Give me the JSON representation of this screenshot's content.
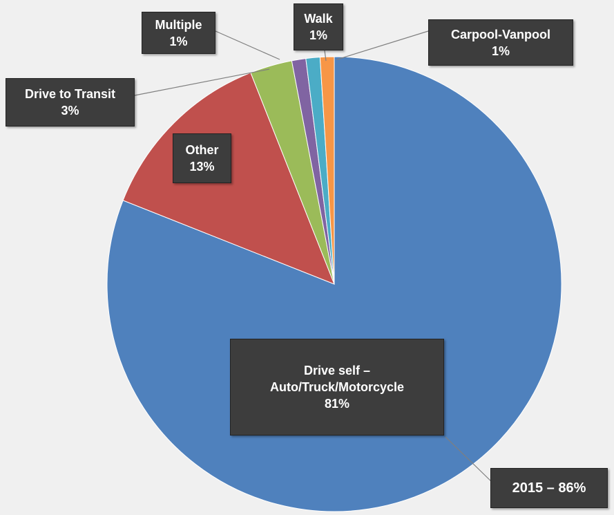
{
  "chart_data": {
    "type": "pie",
    "categories": [
      "Drive self – Auto/Truck/Motorcycle",
      "Other",
      "Drive to Transit",
      "Multiple",
      "Walk",
      "Carpool-Vanpool"
    ],
    "values": [
      81,
      13,
      3,
      1,
      1,
      1
    ],
    "value_labels": [
      "81%",
      "13%",
      "3%",
      "1%",
      "1%",
      "1%"
    ],
    "colors": [
      "#4f81bd",
      "#c0504d",
      "#9bbb59",
      "#8064a2",
      "#4bacc6",
      "#f79646"
    ],
    "annotation": "2015 – 86%"
  }
}
